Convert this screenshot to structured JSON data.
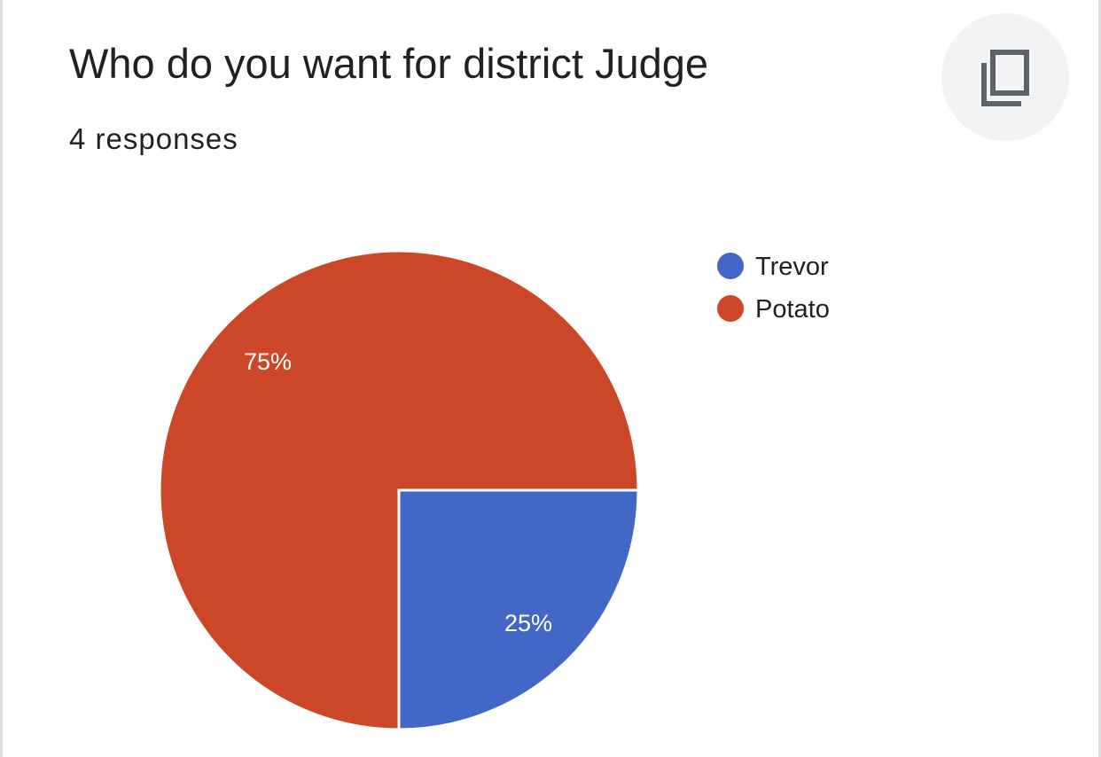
{
  "title": "Who do you want for district Judge",
  "subtitle": "4 responses",
  "copy_icon": "copy-icon",
  "chart_data": {
    "type": "pie",
    "categories": [
      "Trevor",
      "Potato"
    ],
    "values": [
      25,
      75
    ],
    "value_labels": [
      "25%",
      "75%"
    ],
    "colors": [
      "#4267c6",
      "#cc4727"
    ],
    "legend_position": "right-top"
  }
}
